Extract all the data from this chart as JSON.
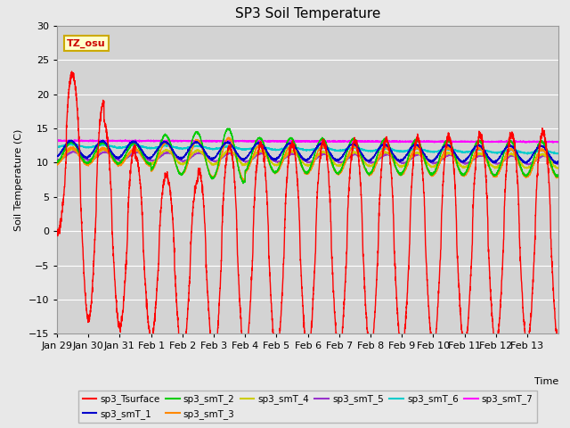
{
  "title": "SP3 Soil Temperature",
  "xlabel": "Time",
  "ylabel": "Soil Temperature (C)",
  "ylim": [
    -15,
    30
  ],
  "background_color": "#e8e8e8",
  "plot_bg_color": "#d3d3d3",
  "grid_color": "#ffffff",
  "annotation_text": "TZ_osu",
  "annotation_color": "#cc0000",
  "annotation_bg": "#ffffcc",
  "annotation_border": "#ccaa00",
  "series_colors": {
    "sp3_Tsurface": "#ff0000",
    "sp3_smT_1": "#0000cc",
    "sp3_smT_2": "#00cc00",
    "sp3_smT_3": "#ff8800",
    "sp3_smT_4": "#cccc00",
    "sp3_smT_5": "#9933cc",
    "sp3_smT_6": "#00cccc",
    "sp3_smT_7": "#ff00ff"
  }
}
